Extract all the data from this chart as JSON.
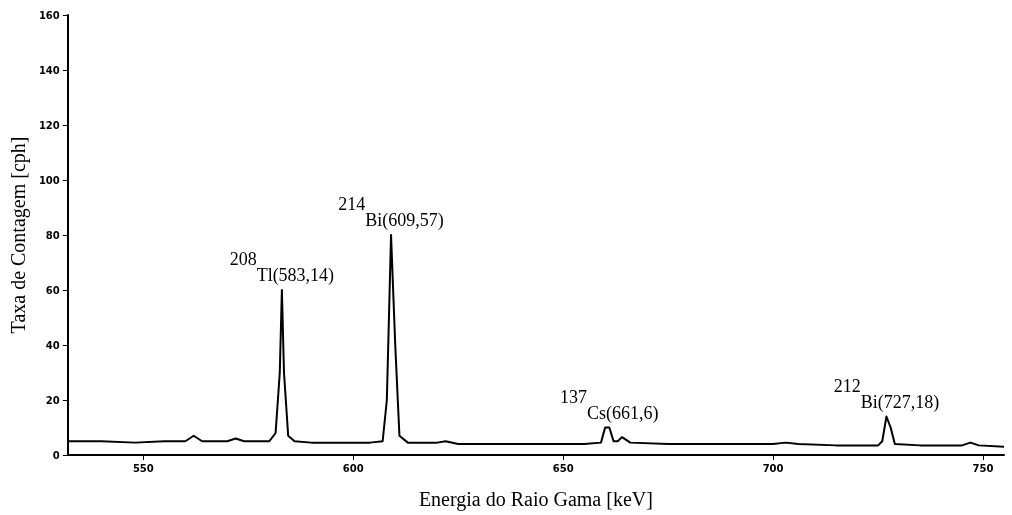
{
  "chart_data": {
    "type": "line",
    "xlabel": "Energia do Raio Gama [keV]",
    "ylabel": "Taxa de Contagem [cph]",
    "xlim": [
      532,
      755
    ],
    "xticks": [
      550,
      600,
      650,
      700,
      750
    ],
    "ylim": [
      0,
      160
    ],
    "yticks": [
      0,
      20,
      40,
      60,
      80,
      100,
      120,
      140,
      160
    ],
    "grid": false,
    "marker": "none",
    "line_style": "solid",
    "series": [
      {
        "color": "#000000",
        "x": [
          532,
          540,
          548,
          555,
          560,
          562,
          564,
          570,
          572,
          574,
          580,
          581.5,
          582.5,
          583,
          583.5,
          584.5,
          586,
          590,
          596,
          600,
          604,
          607,
          608,
          609,
          610,
          611,
          613,
          620,
          622,
          625,
          635,
          645,
          655,
          659,
          660,
          661,
          662,
          663,
          664,
          666,
          675,
          690,
          700,
          703,
          706,
          715,
          725,
          726,
          727,
          728,
          729,
          735,
          745,
          747,
          749,
          755
        ],
        "values": [
          5,
          5,
          4.5,
          5,
          5,
          7,
          5,
          5,
          6,
          5,
          5,
          8,
          30,
          60,
          30,
          7,
          5,
          4.5,
          4.5,
          4.5,
          4.5,
          5,
          20,
          80,
          40,
          7,
          4.5,
          4.5,
          5,
          4,
          4,
          4,
          4,
          4.5,
          10,
          10,
          5,
          5,
          6.5,
          4.5,
          4,
          4,
          4,
          4.5,
          4,
          3.5,
          3.5,
          5,
          14,
          10,
          4,
          3.5,
          3.5,
          4.5,
          3.5,
          3
        ]
      }
    ],
    "annotations": [
      {
        "text": "$^{208}$Tl(583,14)",
        "x": 583,
        "y": 60
      },
      {
        "text": "$^{214}$Bi(609,57)",
        "x": 609,
        "y": 80
      },
      {
        "text": "$^{137}$Cs(661,6)",
        "x": 661,
        "y": 10
      },
      {
        "text": "$^{212}$Bi(727,18)",
        "x": 727,
        "y": 14
      }
    ]
  }
}
